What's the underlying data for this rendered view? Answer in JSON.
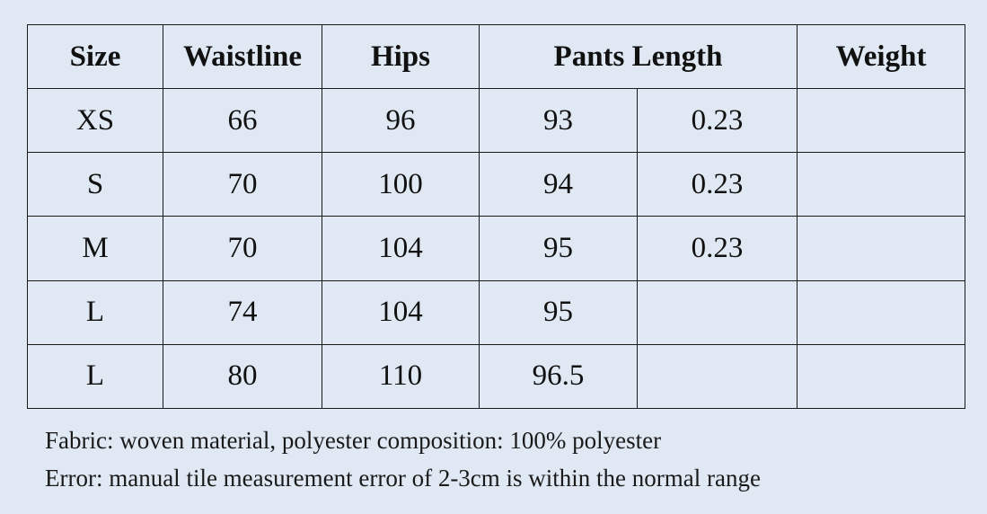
{
  "table": {
    "headers": {
      "size": "Size",
      "waistline": "Waistline",
      "hips": "Hips",
      "pants_length": "Pants Length",
      "weight": "Weight"
    },
    "rows": [
      {
        "size": "XS",
        "waistline": "66",
        "hips": "96",
        "pants_length": "93",
        "extra": "0.23",
        "weight": ""
      },
      {
        "size": "S",
        "waistline": "70",
        "hips": "100",
        "pants_length": "94",
        "extra": "0.23",
        "weight": ""
      },
      {
        "size": "M",
        "waistline": "70",
        "hips": "104",
        "pants_length": "95",
        "extra": "0.23",
        "weight": ""
      },
      {
        "size": "L",
        "waistline": "74",
        "hips": "104",
        "pants_length": "95",
        "extra": "",
        "weight": ""
      },
      {
        "size": "L",
        "waistline": "80",
        "hips": "110",
        "pants_length": "96.5",
        "extra": "",
        "weight": ""
      }
    ]
  },
  "notes": {
    "fabric": "Fabric: woven material, polyester composition: 100% polyester",
    "error": "Error: manual tile measurement error of 2-3cm is within the normal range"
  }
}
